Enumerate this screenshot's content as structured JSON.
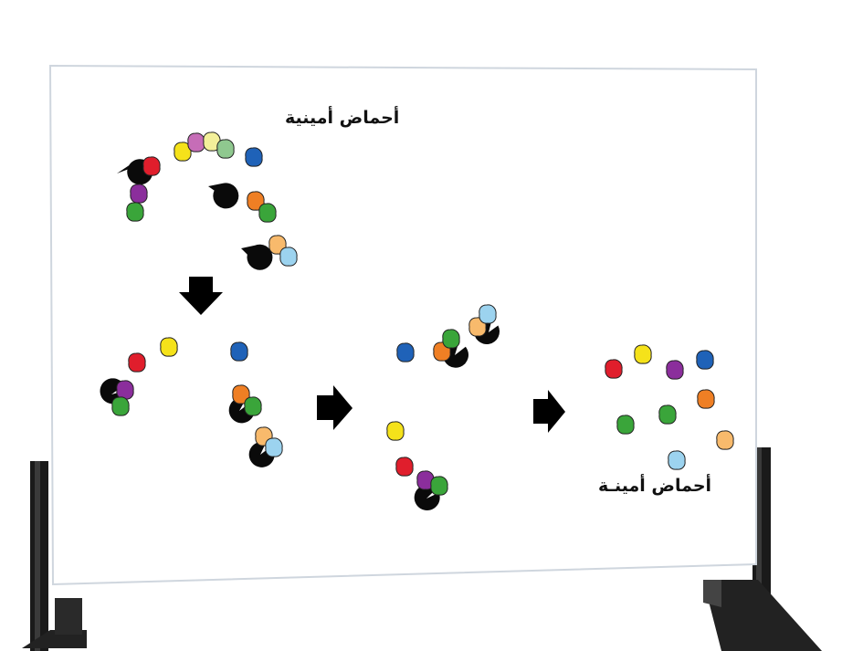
{
  "labels": {
    "top": "أحماض أمينية",
    "bottom": "أحماض أمينـة"
  },
  "colors": {
    "red": "#e01e2c",
    "purple": "#8b2e9c",
    "green": "#3aa53a",
    "yellow": "#f5e21a",
    "pink": "#c66db7",
    "light_yellow": "#f3f09a",
    "sage": "#8fc88f",
    "blue": "#1f62b8",
    "orange": "#ef7f24",
    "peach": "#f8ba6c",
    "light_blue": "#9cd3ef",
    "enzyme": "#0a0a0a"
  },
  "figure": {
    "stages": [
      "free-amino-acids-and-enzymes",
      "amino-acids-bound",
      "enzymes-activated",
      "released-amino-acids"
    ],
    "arrows": [
      "down",
      "right",
      "right"
    ]
  }
}
